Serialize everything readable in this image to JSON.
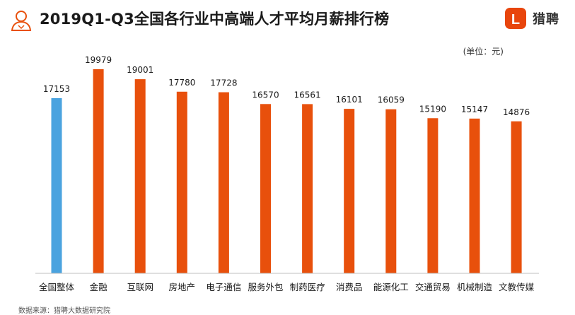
{
  "title": "2019Q1-Q3全国各行业中高端人才平均月薪排行榜",
  "brand": {
    "name": "猎聘",
    "logo_letter": "L",
    "color": "#e8450c",
    "icon": "liepin-logo-icon"
  },
  "header_icon": "person-outline-icon",
  "unit": "(单位：元)",
  "source": "数据来源：猎聘大数据研究院",
  "chart_data": {
    "type": "bar",
    "categories": [
      "全国整体",
      "金融",
      "互联网",
      "房地产",
      "电子通信",
      "服务外包",
      "制药医疗",
      "消费品",
      "能源化工",
      "交通贸易",
      "机械制造",
      "文教传媒"
    ],
    "values": [
      17153,
      19979,
      19001,
      17780,
      17728,
      16570,
      16561,
      16101,
      16059,
      15190,
      15147,
      14876
    ],
    "bar_colors": [
      "#4aa3df",
      "#e8500c",
      "#e8500c",
      "#e8500c",
      "#e8500c",
      "#e8500c",
      "#e8500c",
      "#e8500c",
      "#e8500c",
      "#e8500c",
      "#e8500c",
      "#e8500c"
    ],
    "title": "2019Q1-Q3全国各行业中高端人才平均月薪排行榜",
    "xlabel": "",
    "ylabel": "",
    "ylim": [
      0,
      20000
    ],
    "grid": false,
    "legend": "none"
  }
}
